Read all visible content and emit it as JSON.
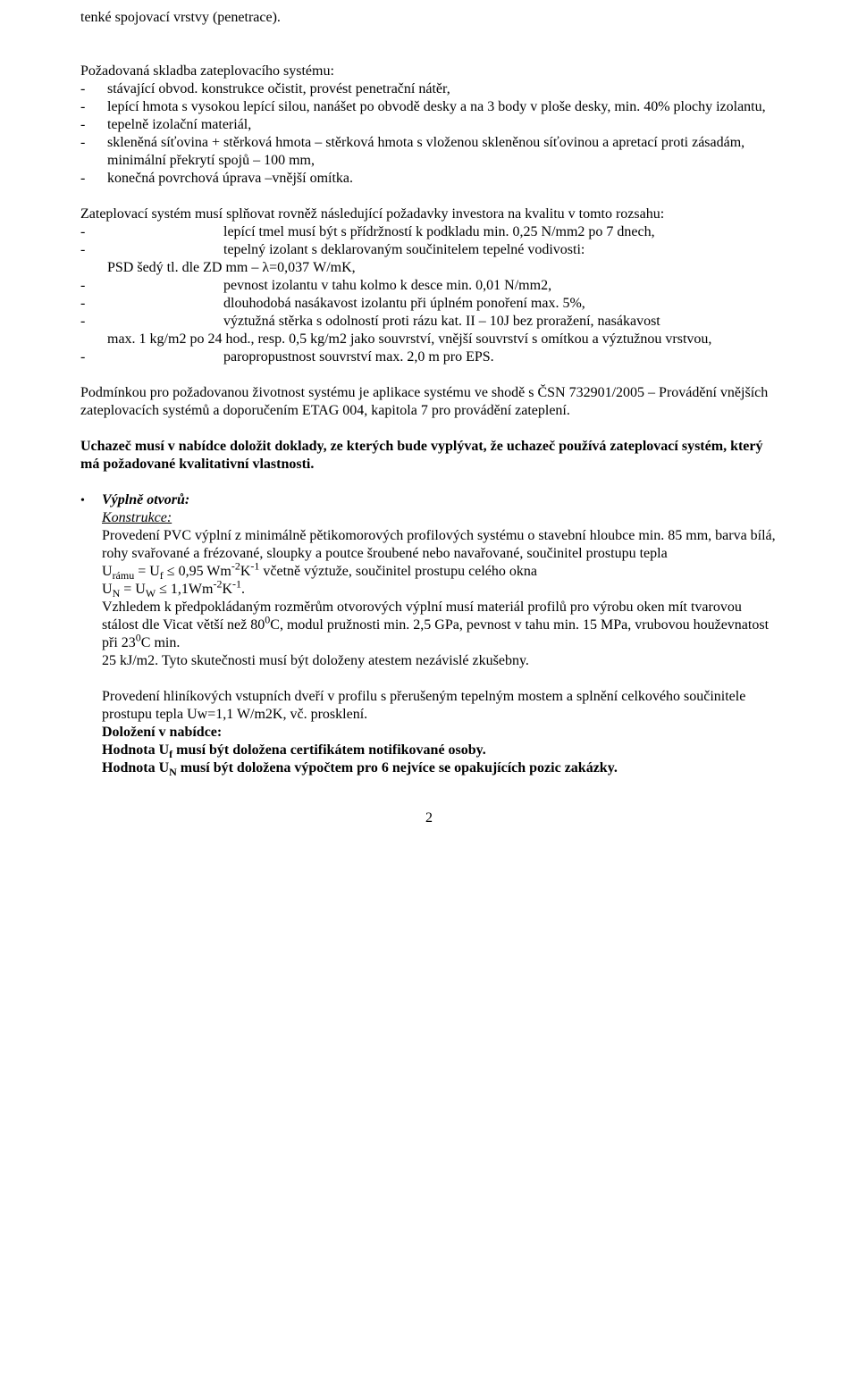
{
  "p_top": "tenké spojovací vrstvy (penetrace).",
  "p_pozad": "Požadovaná skladba zateplovacího systému:",
  "skladba_items": [
    "stávající obvod. konstrukce očistit, provést penetrační nátěr,",
    "lepící hmota s vysokou lepící silou, nanášet po obvodě desky a na 3 body v ploše desky, min. 40% plochy izolantu,",
    "tepelně izolační materiál,",
    "skleněná síťovina + stěrková hmota – stěrková hmota s vloženou skleněnou síťovinou a apretací proti zásadám, minimální překrytí spojů – 100 mm,",
    "konečná povrchová úprava –vnější omítka."
  ],
  "p_zatepl_intro": "Zateplovací systém musí splňovat rovněž následující požadavky investora na kvalitu v tomto rozsahu:",
  "req": [
    "lepící tmel musí být s přídržností k podkladu min. 0,25 N/mm2 po 7 dnech,",
    "tepelný izolant s deklarovaným součinitelem tepelné vodivosti:"
  ],
  "req_psd": "PSD šedý  tl. dle ZD mm – λ=0,037 W/mK,",
  "req3": "pevnost izolantu v tahu kolmo k desce min. 0,01 N/mm2,",
  "req4": "dlouhodobá nasákavost izolantu při úplném ponoření max. 5%,",
  "req5": "výztužná stěrka s odolností proti rázu kat. II – 10J bez proražení, nasákavost",
  "req5_cont": "max. 1 kg/m2 po 24 hod., resp. 0,5 kg/m2 jako souvrství, vnější souvrství s omítkou a výztužnou vrstvou,",
  "req6": "paropropustnost souvrství max. 2,0 m pro EPS.",
  "p_podminka": "Podmínkou pro požadovanou životnost systému je aplikace systému ve shodě s ČSN 732901/2005 – Provádění vnějších zateplovacích systémů a doporučením ETAG 004, kapitola 7 pro provádění zateplení.",
  "p_uchazec": "Uchazeč musí v nabídce doložit doklady, ze kterých bude vyplývat, že uchazeč používá zateplovací systém, který má požadované kvalitativní vlastnosti.",
  "heading_vyplne": "Výplně otvorů:",
  "heading_konstrukce": "Konstrukce:",
  "vyplne_p1": "Provedení PVC  výplní z minimálně pětikomorových profilových systému o stavební hloubce min. 85 mm, barva bílá, rohy svařované a frézované, sloupky a poutce šroubené nebo navařované, součinitel prostupu tepla",
  "u_ramu_label": "U",
  "u_ramu_sub": "rámu",
  "u_eq": " = U",
  "u_f_sub": "f",
  "u_le": " ≤ 0,95 Wm",
  "u_wm_sup1": "-2",
  "u_k": "K",
  "u_wm_sup2": "-1",
  "u_vcetne": " včetně výztuže, součinitel prostupu celého okna",
  "u_n": "U",
  "u_n_sub": "N",
  "u_eq2": " = U",
  "u_w_sub": "W",
  "u_le2": "  ≤  1,1Wm",
  "u_dot": ".",
  "vyplne_p2a": "Vzhledem k předpokládaným rozměrům otvorových výplní musí materiál profilů pro výrobu oken mít tvarovou stálost dle Vicat větší než 80",
  "vyplne_p2_sup": "0",
  "vyplne_p2b": "C, modul pružnosti min. 2,5 GPa, pevnost v tahu min. 15 MPa, vrubovou houževnatost při 23",
  "vyplne_p2c": "C min.",
  "vyplne_p3": "25 kJ/m2. Tyto skutečnosti musí být doloženy atestem nezávislé zkušebny.",
  "vyplne_p4": "Provedení hliníkových vstupních dveří v profilu s přerušeným tepelným mostem a splnění celkového součinitele prostupu tepla Uw=1,1 W/m2K, vč. prosklení.",
  "dolozeni": "Doložení v nabídce:",
  "hodnota_uf_a": "Hodnota U",
  "hodnota_uf_sub": "f",
  "hodnota_uf_b": " musí být doložena certifikátem notifikované osoby.",
  "hodnota_un_a": "Hodnota U",
  "hodnota_un_sub": "N",
  "hodnota_un_b": " musí být doložena výpočtem pro 6 nejvíce se opakujících pozic zakázky.",
  "page_number": "2"
}
